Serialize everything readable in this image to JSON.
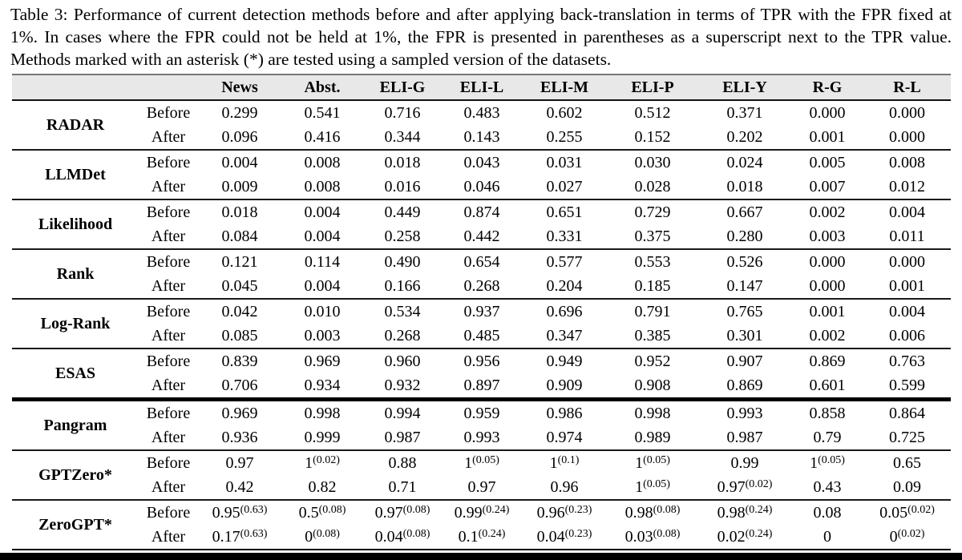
{
  "caption": "Table 3: Performance of current detection methods before and after applying back-translation in terms of TPR with the FPR fixed at 1%. In cases where the FPR could not be held at 1%, the FPR is presented in parentheses as a superscript next to the TPR value. Methods marked with an asterisk (*) are tested using a sampled version of the datasets.",
  "table": {
    "corner_label": "",
    "columns": [
      "News",
      "Abst.",
      "ELI-G",
      "ELI-L",
      "ELI-M",
      "ELI-P",
      "ELI-Y",
      "R-G",
      "R-L"
    ],
    "phase_labels": [
      "Before",
      "After"
    ],
    "groups": [
      {
        "method": "RADAR",
        "separator": "first",
        "before": [
          "0.299",
          "0.541",
          "0.716",
          "0.483",
          "0.602",
          "0.512",
          "0.371",
          "0.000",
          "0.000"
        ],
        "after": [
          "0.096",
          "0.416",
          "0.344",
          "0.143",
          "0.255",
          "0.152",
          "0.202",
          "0.001",
          "0.000"
        ]
      },
      {
        "method": "LLMDet",
        "separator": "normal",
        "before": [
          "0.004",
          "0.008",
          "0.018",
          "0.043",
          "0.031",
          "0.030",
          "0.024",
          "0.005",
          "0.008"
        ],
        "after": [
          "0.009",
          "0.008",
          "0.016",
          "0.046",
          "0.027",
          "0.028",
          "0.018",
          "0.007",
          "0.012"
        ]
      },
      {
        "method": "Likelihood",
        "separator": "normal",
        "before": [
          "0.018",
          "0.004",
          "0.449",
          "0.874",
          "0.651",
          "0.729",
          "0.667",
          "0.002",
          "0.004"
        ],
        "after": [
          "0.084",
          "0.004",
          "0.258",
          "0.442",
          "0.331",
          "0.375",
          "0.280",
          "0.003",
          "0.011"
        ]
      },
      {
        "method": "Rank",
        "separator": "normal",
        "before": [
          "0.121",
          "0.114",
          "0.490",
          "0.654",
          "0.577",
          "0.553",
          "0.526",
          "0.000",
          "0.000"
        ],
        "after": [
          "0.045",
          "0.004",
          "0.166",
          "0.268",
          "0.204",
          "0.185",
          "0.147",
          "0.000",
          "0.001"
        ]
      },
      {
        "method": "Log-Rank",
        "separator": "normal",
        "before": [
          "0.042",
          "0.010",
          "0.534",
          "0.937",
          "0.696",
          "0.791",
          "0.765",
          "0.001",
          "0.004"
        ],
        "after": [
          "0.085",
          "0.003",
          "0.268",
          "0.485",
          "0.347",
          "0.385",
          "0.301",
          "0.002",
          "0.006"
        ]
      },
      {
        "method": "ESAS",
        "separator": "normal",
        "before": [
          "0.839",
          "0.969",
          "0.960",
          "0.956",
          "0.949",
          "0.952",
          "0.907",
          "0.869",
          "0.763"
        ],
        "after": [
          "0.706",
          "0.934",
          "0.932",
          "0.897",
          "0.909",
          "0.908",
          "0.869",
          "0.601",
          "0.599"
        ]
      },
      {
        "method": "Pangram",
        "separator": "thick",
        "before": [
          "0.969",
          "0.998",
          "0.994",
          "0.959",
          "0.986",
          "0.998",
          "0.993",
          "0.858",
          "0.864"
        ],
        "after": [
          "0.936",
          "0.999",
          "0.987",
          "0.993",
          "0.974",
          "0.989",
          "0.987",
          "0.79",
          "0.725"
        ]
      },
      {
        "method": "GPTZero*",
        "separator": "normal",
        "before": [
          "0.97",
          "1^(0.02)",
          "0.88",
          "1^(0.05)",
          "1^(0.1)",
          "1^(0.05)",
          "0.99",
          "1^(0.05)",
          "0.65"
        ],
        "after": [
          "0.42",
          "0.82",
          "0.71",
          "0.97",
          "0.96",
          "1^(0.05)",
          "0.97^(0.02)",
          "0.43",
          "0.09"
        ]
      },
      {
        "method": "ZeroGPT*",
        "separator": "last",
        "before": [
          "0.95^(0.63)",
          "0.5^(0.08)",
          "0.97^(0.08)",
          "0.99^(0.24)",
          "0.96^(0.23)",
          "0.98^(0.08)",
          "0.98^(0.24)",
          "0.08",
          "0.05^(0.02)"
        ],
        "after": [
          "0.17^(0.63)",
          "0^(0.08)",
          "0.04^(0.08)",
          "0.1^(0.24)",
          "0.04^(0.23)",
          "0.03^(0.08)",
          "0.02^(0.24)",
          "0",
          "0^(0.02)"
        ]
      }
    ]
  },
  "colors": {
    "header_bg": "#e8e8e8",
    "rule": "#1a1a1a",
    "thick_rule": "#000000"
  }
}
